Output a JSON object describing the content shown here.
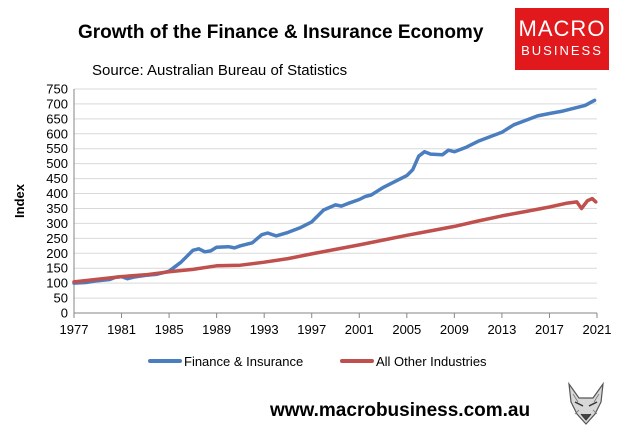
{
  "header": {
    "title": "Growth of the Finance & Insurance Economy",
    "subtitle": "Source: Australian Bureau of Statistics"
  },
  "logo": {
    "line1": "MACRO",
    "line2": "BUSINESS",
    "color": "#e1191d"
  },
  "footer": {
    "website": "www.macrobusiness.com.au",
    "mascot_icon": "fox-head-icon"
  },
  "chart_data": {
    "type": "line",
    "title": "Growth of the Finance & Insurance Economy",
    "subtitle": "Source: Australian Bureau of Statistics",
    "xlabel": "",
    "ylabel": "Index",
    "xlim": [
      1977,
      2021
    ],
    "ylim": [
      0,
      750
    ],
    "x_ticks": [
      1977,
      1981,
      1985,
      1989,
      1993,
      1997,
      2001,
      2005,
      2009,
      2013,
      2017,
      2021
    ],
    "y_ticks": [
      0,
      50,
      100,
      150,
      200,
      250,
      300,
      350,
      400,
      450,
      500,
      550,
      600,
      650,
      700,
      750
    ],
    "grid": "horizontal",
    "legend": "bottom",
    "series": [
      {
        "name": "Finance & Insurance",
        "color": "#4a7ebf",
        "points": [
          [
            1977,
            100
          ],
          [
            1978,
            102
          ],
          [
            1979,
            108
          ],
          [
            1980,
            112
          ],
          [
            1980.5,
            120
          ],
          [
            1981,
            122
          ],
          [
            1981.5,
            115
          ],
          [
            1982,
            120
          ],
          [
            1983,
            126
          ],
          [
            1984,
            130
          ],
          [
            1985,
            140
          ],
          [
            1986,
            170
          ],
          [
            1986.5,
            190
          ],
          [
            1987,
            210
          ],
          [
            1987.5,
            215
          ],
          [
            1988,
            205
          ],
          [
            1988.5,
            208
          ],
          [
            1989,
            220
          ],
          [
            1990,
            222
          ],
          [
            1990.5,
            218
          ],
          [
            1991,
            225
          ],
          [
            1992,
            235
          ],
          [
            1992.8,
            262
          ],
          [
            1993.3,
            268
          ],
          [
            1994,
            258
          ],
          [
            1995,
            270
          ],
          [
            1996,
            285
          ],
          [
            1997,
            305
          ],
          [
            1998,
            345
          ],
          [
            1999,
            362
          ],
          [
            1999.5,
            358
          ],
          [
            2000,
            366
          ],
          [
            2001,
            380
          ],
          [
            2001.5,
            390
          ],
          [
            2002,
            395
          ],
          [
            2003,
            420
          ],
          [
            2004,
            440
          ],
          [
            2005,
            460
          ],
          [
            2005.5,
            480
          ],
          [
            2006,
            525
          ],
          [
            2006.5,
            540
          ],
          [
            2007,
            532
          ],
          [
            2008,
            530
          ],
          [
            2008.5,
            545
          ],
          [
            2009,
            540
          ],
          [
            2010,
            555
          ],
          [
            2011,
            575
          ],
          [
            2012,
            590
          ],
          [
            2013,
            605
          ],
          [
            2014,
            630
          ],
          [
            2015,
            645
          ],
          [
            2016,
            660
          ],
          [
            2017,
            668
          ],
          [
            2018,
            675
          ],
          [
            2019,
            685
          ],
          [
            2020,
            695
          ],
          [
            2020.8,
            712
          ]
        ]
      },
      {
        "name": "All Other Industries",
        "color": "#c0504d",
        "points": [
          [
            1977,
            104
          ],
          [
            1979,
            113
          ],
          [
            1981,
            122
          ],
          [
            1983,
            128
          ],
          [
            1985,
            138
          ],
          [
            1987,
            146
          ],
          [
            1989,
            158
          ],
          [
            1991,
            160
          ],
          [
            1993,
            170
          ],
          [
            1995,
            182
          ],
          [
            1997,
            198
          ],
          [
            1999,
            213
          ],
          [
            2001,
            228
          ],
          [
            2003,
            244
          ],
          [
            2005,
            260
          ],
          [
            2007,
            275
          ],
          [
            2009,
            290
          ],
          [
            2011,
            308
          ],
          [
            2013,
            325
          ],
          [
            2015,
            340
          ],
          [
            2017,
            355
          ],
          [
            2018.5,
            368
          ],
          [
            2019.3,
            372
          ],
          [
            2019.7,
            350
          ],
          [
            2020.2,
            376
          ],
          [
            2020.6,
            383
          ],
          [
            2020.9,
            372
          ]
        ]
      }
    ]
  }
}
